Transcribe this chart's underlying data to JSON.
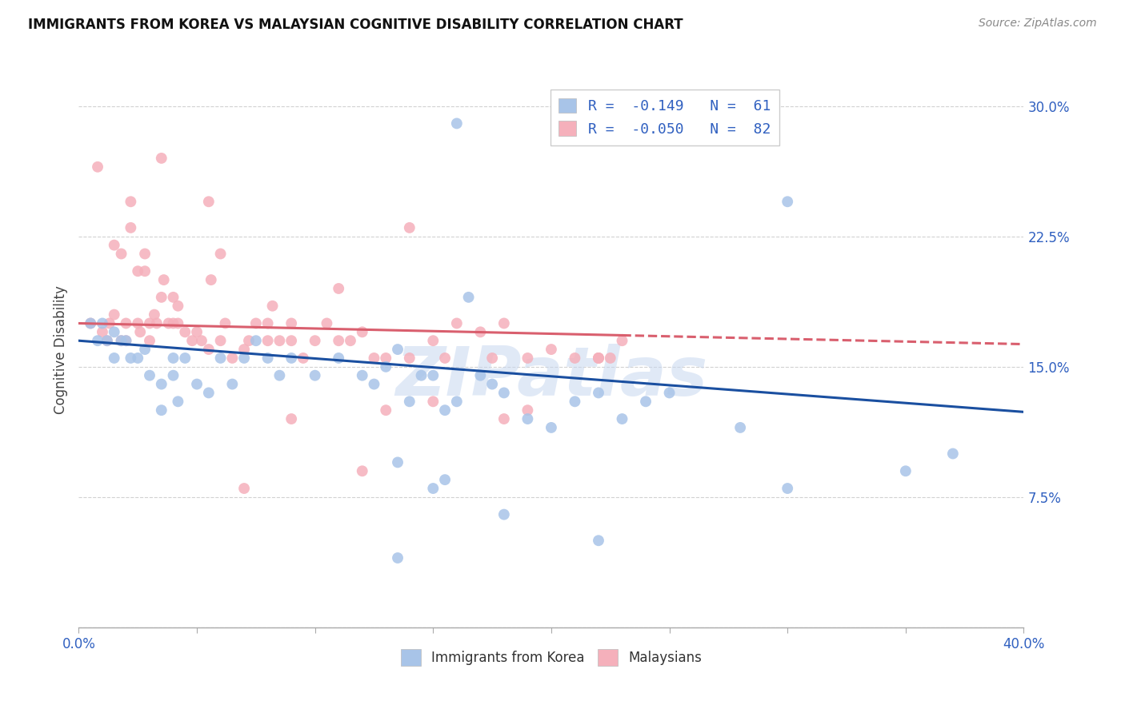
{
  "title": "IMMIGRANTS FROM KOREA VS MALAYSIAN COGNITIVE DISABILITY CORRELATION CHART",
  "source": "Source: ZipAtlas.com",
  "ylabel": "Cognitive Disability",
  "xlim": [
    0.0,
    0.4
  ],
  "ylim": [
    0.0,
    0.32
  ],
  "xticks": [
    0.0,
    0.05,
    0.1,
    0.15,
    0.2,
    0.25,
    0.3,
    0.35,
    0.4
  ],
  "yticks": [
    0.0,
    0.075,
    0.15,
    0.225,
    0.3
  ],
  "korea_color": "#a8c4e8",
  "malaysia_color": "#f5b0bb",
  "trend_korea_color": "#1a4fa0",
  "trend_malaysia_color": "#d95f6e",
  "text_color": "#3060c0",
  "grid_color": "#cccccc",
  "watermark": "ZIPatlas",
  "legend1_label": "R =  -0.149   N =  61",
  "legend2_label": "R =  -0.050   N =  82",
  "legend1_series": "Immigrants from Korea",
  "legend2_series": "Malaysians",
  "korea_trend_x0": 0.0,
  "korea_trend_y0": 0.165,
  "korea_trend_x1": 0.4,
  "korea_trend_y1": 0.124,
  "malaysia_trend_x0": 0.0,
  "malaysia_trend_y0": 0.175,
  "malaysia_trend_x1": 0.4,
  "malaysia_trend_y1": 0.163,
  "korea_points_x": [
    0.005,
    0.008,
    0.01,
    0.012,
    0.015,
    0.015,
    0.018,
    0.02,
    0.022,
    0.025,
    0.028,
    0.03,
    0.035,
    0.035,
    0.04,
    0.04,
    0.042,
    0.045,
    0.05,
    0.055,
    0.06,
    0.065,
    0.07,
    0.075,
    0.08,
    0.085,
    0.09,
    0.1,
    0.11,
    0.12,
    0.125,
    0.13,
    0.135,
    0.14,
    0.145,
    0.15,
    0.155,
    0.16,
    0.165,
    0.17,
    0.175,
    0.18,
    0.19,
    0.2,
    0.21,
    0.22,
    0.23,
    0.24,
    0.25,
    0.28,
    0.16,
    0.3,
    0.35,
    0.37,
    0.135,
    0.18,
    0.15,
    0.155,
    0.22,
    0.3,
    0.135
  ],
  "korea_points_y": [
    0.175,
    0.165,
    0.175,
    0.165,
    0.17,
    0.155,
    0.165,
    0.165,
    0.155,
    0.155,
    0.16,
    0.145,
    0.14,
    0.125,
    0.155,
    0.145,
    0.13,
    0.155,
    0.14,
    0.135,
    0.155,
    0.14,
    0.155,
    0.165,
    0.155,
    0.145,
    0.155,
    0.145,
    0.155,
    0.145,
    0.14,
    0.15,
    0.16,
    0.13,
    0.145,
    0.145,
    0.125,
    0.13,
    0.19,
    0.145,
    0.14,
    0.135,
    0.12,
    0.115,
    0.13,
    0.135,
    0.12,
    0.13,
    0.135,
    0.115,
    0.29,
    0.245,
    0.09,
    0.1,
    0.095,
    0.065,
    0.08,
    0.085,
    0.05,
    0.08,
    0.04
  ],
  "malaysia_points_x": [
    0.005,
    0.008,
    0.01,
    0.012,
    0.013,
    0.015,
    0.015,
    0.018,
    0.018,
    0.02,
    0.02,
    0.022,
    0.022,
    0.025,
    0.025,
    0.026,
    0.028,
    0.028,
    0.03,
    0.03,
    0.032,
    0.033,
    0.035,
    0.036,
    0.038,
    0.04,
    0.04,
    0.042,
    0.042,
    0.045,
    0.048,
    0.05,
    0.052,
    0.055,
    0.056,
    0.06,
    0.062,
    0.065,
    0.07,
    0.072,
    0.075,
    0.08,
    0.08,
    0.082,
    0.085,
    0.09,
    0.09,
    0.095,
    0.1,
    0.105,
    0.11,
    0.115,
    0.12,
    0.125,
    0.13,
    0.14,
    0.15,
    0.155,
    0.16,
    0.17,
    0.175,
    0.18,
    0.19,
    0.2,
    0.21,
    0.22,
    0.225,
    0.23,
    0.12,
    0.13,
    0.09,
    0.07,
    0.055,
    0.14,
    0.22,
    0.035,
    0.06,
    0.11,
    0.15,
    0.18,
    0.22,
    0.19
  ],
  "malaysia_points_y": [
    0.175,
    0.265,
    0.17,
    0.165,
    0.175,
    0.18,
    0.22,
    0.165,
    0.215,
    0.175,
    0.165,
    0.245,
    0.23,
    0.175,
    0.205,
    0.17,
    0.215,
    0.205,
    0.175,
    0.165,
    0.18,
    0.175,
    0.19,
    0.2,
    0.175,
    0.19,
    0.175,
    0.175,
    0.185,
    0.17,
    0.165,
    0.17,
    0.165,
    0.16,
    0.2,
    0.165,
    0.175,
    0.155,
    0.16,
    0.165,
    0.175,
    0.175,
    0.165,
    0.185,
    0.165,
    0.175,
    0.165,
    0.155,
    0.165,
    0.175,
    0.165,
    0.165,
    0.17,
    0.155,
    0.155,
    0.155,
    0.165,
    0.155,
    0.175,
    0.17,
    0.155,
    0.175,
    0.155,
    0.16,
    0.155,
    0.155,
    0.155,
    0.165,
    0.09,
    0.125,
    0.12,
    0.08,
    0.245,
    0.23,
    0.155,
    0.27,
    0.215,
    0.195,
    0.13,
    0.12,
    0.155,
    0.125
  ]
}
